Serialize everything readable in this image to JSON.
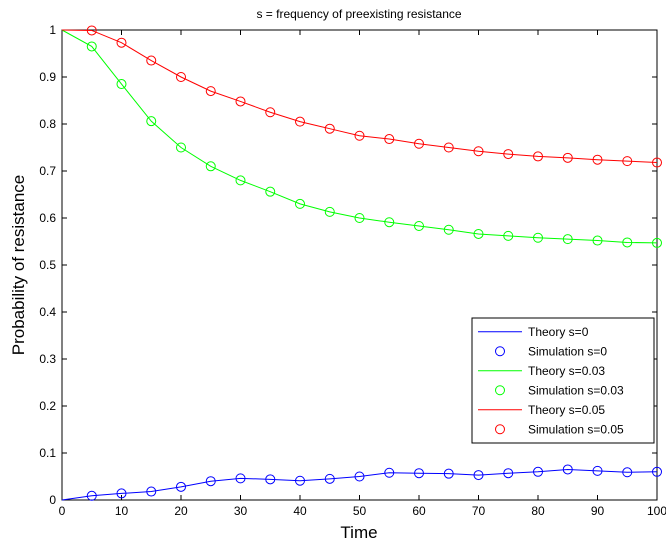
{
  "chart_data": {
    "type": "line",
    "title": "s = frequency of preexisting resistance",
    "xlabel": "Time",
    "ylabel": "Probability of resistance",
    "xlim": [
      0,
      100
    ],
    "ylim": [
      0,
      1
    ],
    "xticks": [
      "0",
      "10",
      "20",
      "30",
      "40",
      "50",
      "60",
      "70",
      "80",
      "90",
      "100"
    ],
    "yticks": [
      "0",
      "0.1",
      "0.2",
      "0.3",
      "0.4",
      "0.5",
      "0.6",
      "0.7",
      "0.8",
      "0.9",
      "1"
    ],
    "grid": false,
    "legend_position": "lower-right",
    "series": [
      {
        "name": "Theory s=0",
        "kind": "line",
        "color": "#0000ff",
        "x": [
          0,
          5,
          10,
          15,
          20,
          25,
          30,
          35,
          40,
          45,
          50,
          55,
          60,
          65,
          70,
          75,
          80,
          85,
          90,
          95,
          100
        ],
        "y": [
          0,
          0.009,
          0.014,
          0.018,
          0.028,
          0.04,
          0.046,
          0.044,
          0.041,
          0.045,
          0.05,
          0.058,
          0.057,
          0.056,
          0.053,
          0.057,
          0.06,
          0.065,
          0.062,
          0.059,
          0.06
        ]
      },
      {
        "name": "Simulation s=0",
        "kind": "markers",
        "color": "#0000ff",
        "x": [
          5,
          10,
          15,
          20,
          25,
          30,
          35,
          40,
          45,
          50,
          55,
          60,
          65,
          70,
          75,
          80,
          85,
          90,
          95,
          100
        ],
        "y": [
          0.009,
          0.014,
          0.018,
          0.028,
          0.04,
          0.046,
          0.044,
          0.041,
          0.045,
          0.05,
          0.058,
          0.057,
          0.056,
          0.053,
          0.057,
          0.06,
          0.065,
          0.062,
          0.059,
          0.06
        ]
      },
      {
        "name": "Theory s=0.03",
        "kind": "line",
        "color": "#00ff00",
        "x": [
          0,
          5,
          10,
          15,
          20,
          25,
          30,
          35,
          40,
          45,
          50,
          55,
          60,
          65,
          70,
          75,
          80,
          85,
          90,
          95,
          100
        ],
        "y": [
          1.0,
          0.965,
          0.885,
          0.806,
          0.75,
          0.71,
          0.68,
          0.656,
          0.63,
          0.613,
          0.6,
          0.591,
          0.583,
          0.575,
          0.566,
          0.562,
          0.558,
          0.555,
          0.552,
          0.548,
          0.547
        ]
      },
      {
        "name": "Simulation s=0.03",
        "kind": "markers",
        "color": "#00ff00",
        "x": [
          5,
          10,
          15,
          20,
          25,
          30,
          35,
          40,
          45,
          50,
          55,
          60,
          65,
          70,
          75,
          80,
          85,
          90,
          95,
          100
        ],
        "y": [
          0.965,
          0.885,
          0.806,
          0.75,
          0.71,
          0.68,
          0.656,
          0.63,
          0.613,
          0.6,
          0.591,
          0.583,
          0.575,
          0.566,
          0.562,
          0.558,
          0.555,
          0.552,
          0.548,
          0.547
        ]
      },
      {
        "name": "Theory s=0.05",
        "kind": "line",
        "color": "#ff0000",
        "x": [
          0,
          5,
          10,
          15,
          20,
          25,
          30,
          35,
          40,
          45,
          50,
          55,
          60,
          65,
          70,
          75,
          80,
          85,
          90,
          95,
          100
        ],
        "y": [
          1.0,
          0.999,
          0.973,
          0.935,
          0.9,
          0.87,
          0.848,
          0.825,
          0.805,
          0.79,
          0.775,
          0.768,
          0.758,
          0.75,
          0.742,
          0.736,
          0.731,
          0.728,
          0.724,
          0.721,
          0.718
        ]
      },
      {
        "name": "Simulation s=0.05",
        "kind": "markers",
        "color": "#ff0000",
        "x": [
          5,
          10,
          15,
          20,
          25,
          30,
          35,
          40,
          45,
          50,
          55,
          60,
          65,
          70,
          75,
          80,
          85,
          90,
          95,
          100
        ],
        "y": [
          0.999,
          0.973,
          0.935,
          0.9,
          0.87,
          0.848,
          0.825,
          0.805,
          0.79,
          0.775,
          0.768,
          0.758,
          0.75,
          0.742,
          0.736,
          0.731,
          0.728,
          0.724,
          0.721,
          0.718
        ]
      }
    ]
  }
}
